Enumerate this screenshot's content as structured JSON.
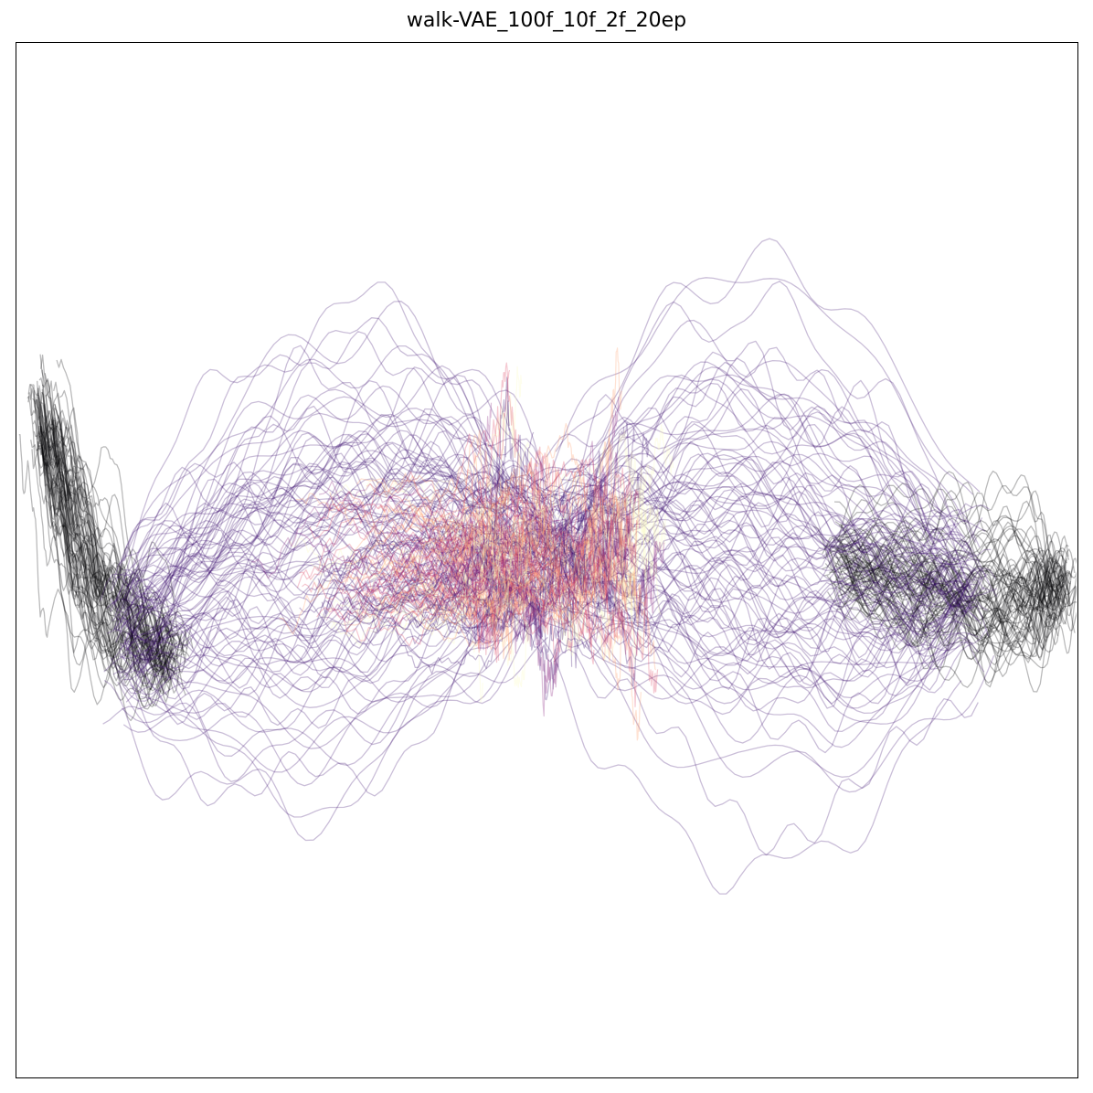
{
  "chart_data": {
    "type": "line",
    "title": "walk-VAE_100f_10f_2f_20ep",
    "xlabel": "",
    "ylabel": "",
    "xticks": [],
    "yticks": [],
    "grid": false,
    "legend": "none",
    "xlim": [
      -1.0,
      1.0
    ],
    "ylim": [
      -1.0,
      1.0
    ],
    "colormap": "magma",
    "line_alpha": 0.22,
    "series_groups": [
      {
        "role": "left-start",
        "count": 70,
        "color": "#000004",
        "anchor_x": -0.95,
        "anchor_y": 0.2,
        "path_x": [
          -0.95,
          -0.9,
          -0.85,
          -0.78,
          -0.7
        ],
        "path_y": [
          0.2,
          0.05,
          -0.08,
          -0.15,
          -0.18
        ],
        "jitter_x": 0.03,
        "jitter_y": 0.06
      },
      {
        "role": "left-arm",
        "count": 90,
        "color": "#3b0f70",
        "path_x": [
          -0.8,
          -0.6,
          -0.4,
          -0.2,
          0.0
        ],
        "path_y": [
          -0.15,
          -0.05,
          0.0,
          0.05,
          0.02
        ],
        "jitter_x": 0.04,
        "jitter_y": 0.22
      },
      {
        "role": "right-end",
        "count": 70,
        "color": "#000004",
        "anchor_x": 0.92,
        "anchor_y": -0.06,
        "path_x": [
          0.55,
          0.7,
          0.82,
          0.92,
          0.98
        ],
        "path_y": [
          0.0,
          -0.04,
          -0.06,
          -0.06,
          -0.05
        ],
        "jitter_x": 0.03,
        "jitter_y": 0.07
      },
      {
        "role": "right-arm",
        "count": 90,
        "color": "#3b0f70",
        "path_x": [
          0.0,
          0.2,
          0.4,
          0.6,
          0.8
        ],
        "path_y": [
          0.02,
          0.05,
          0.03,
          -0.02,
          -0.06
        ],
        "jitter_x": 0.04,
        "jitter_y": 0.22
      },
      {
        "role": "center-spikes",
        "count": 160,
        "colors": [
          "#8c2981",
          "#de4968",
          "#fe9f6d",
          "#fcfdbf",
          "#3b0f70"
        ],
        "x_range": [
          -0.12,
          0.22
        ],
        "y_range": [
          -0.85,
          0.8
        ],
        "amplitude": 0.45
      }
    ]
  }
}
